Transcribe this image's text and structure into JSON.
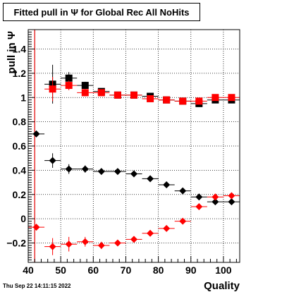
{
  "chart_data": {
    "type": "scatter",
    "title": "Fitted pull in  Ψ  for Global Rec All NoHits",
    "xlabel": "Quality",
    "ylabel": "pull in Ψ",
    "xlim": [
      40,
      105
    ],
    "ylim": [
      -0.36,
      1.56
    ],
    "grid": true,
    "x_ticks": [
      "40",
      "50",
      "60",
      "70",
      "80",
      "90",
      "100"
    ],
    "y_ticks": [
      "−0.2",
      "0",
      "0.2",
      "0.4",
      "0.6",
      "0.8",
      "1",
      "1.2",
      "1.4"
    ],
    "x_tick_values": [
      40,
      50,
      60,
      70,
      80,
      90,
      100
    ],
    "y_tick_values": [
      -0.2,
      0,
      0.2,
      0.4,
      0.6,
      0.8,
      1,
      1.2,
      1.4
    ],
    "colors": {
      "black": "#000000",
      "red": "#ff0000",
      "vline": "#e00000"
    },
    "vline_x": 42,
    "series": [
      {
        "color": "#000000",
        "marker": "square",
        "x": [
          47.5,
          52.5,
          57.5,
          62.5,
          67.5,
          72.5,
          77.5,
          82.5,
          87.5,
          92.5,
          97.5,
          102.5
        ],
        "y": [
          1.11,
          1.16,
          1.1,
          1.05,
          1.02,
          1.02,
          1.01,
          0.98,
          0.97,
          0.95,
          0.98,
          0.98
        ],
        "yerr": [
          0.16,
          0.05,
          0.03,
          0.02,
          0.01,
          0.01,
          0.01,
          0.01,
          0.01,
          0.01,
          0.01,
          0.01
        ]
      },
      {
        "color": "#ff0000",
        "marker": "square",
        "x": [
          47.5,
          52.5,
          57.5,
          62.5,
          67.5,
          72.5,
          77.5,
          82.5,
          87.5,
          92.5,
          97.5,
          102.5
        ],
        "y": [
          1.07,
          1.1,
          1.04,
          1.04,
          1.02,
          1.02,
          0.99,
          0.98,
          0.97,
          0.97,
          1.0,
          1.0
        ],
        "yerr": [
          0.1,
          0.04,
          0.03,
          0.02,
          0.01,
          0.01,
          0.01,
          0.01,
          0.01,
          0.01,
          0.01,
          0.01
        ]
      },
      {
        "color": "#000000",
        "marker": "diamond",
        "x": [
          42.5,
          47.5,
          52.5,
          57.5,
          62.5,
          67.5,
          72.5,
          77.5,
          82.5,
          87.5,
          92.5,
          97.5,
          102.5
        ],
        "y": [
          0.7,
          0.48,
          0.41,
          0.41,
          0.39,
          0.39,
          0.37,
          0.33,
          0.28,
          0.23,
          0.18,
          0.14,
          0.14
        ],
        "yerr": [
          0.0,
          0.06,
          0.04,
          0.03,
          0.02,
          0.01,
          0.01,
          0.01,
          0.01,
          0.01,
          0.01,
          0.01,
          0.01
        ]
      },
      {
        "color": "#ff0000",
        "marker": "diamond",
        "x": [
          42.5,
          47.5,
          52.5,
          57.5,
          62.5,
          67.5,
          72.5,
          77.5,
          82.5,
          87.5,
          92.5,
          97.5,
          102.5
        ],
        "y": [
          -0.07,
          -0.23,
          -0.21,
          -0.19,
          -0.22,
          -0.2,
          -0.17,
          -0.12,
          -0.08,
          -0.02,
          0.1,
          0.18,
          0.19
        ],
        "yerr": [
          0.0,
          0.07,
          0.06,
          0.04,
          0.03,
          0.02,
          0.01,
          0.01,
          0.01,
          0.01,
          0.01,
          0.01,
          0.01
        ]
      }
    ]
  },
  "footer": {
    "datestamp": "Thu Sep 22 14:11:15 2022"
  }
}
